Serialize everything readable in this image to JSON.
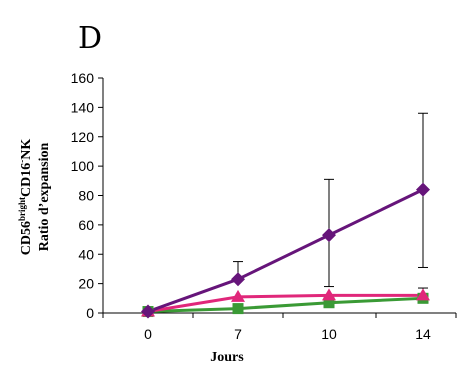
{
  "chart_data": {
    "type": "line",
    "panel_label": "D",
    "xlabel": "Jours",
    "ylabel": {
      "line1_parts": [
        {
          "text": "CD56",
          "sup": false
        },
        {
          "text": "bright",
          "sup": true
        },
        {
          "text": "CD16",
          "sup": false
        },
        {
          "text": "-",
          "sup": true
        },
        {
          "text": "NK",
          "sup": false
        }
      ],
      "line2": "Ratio d’expansion"
    },
    "x": [
      0,
      7,
      10,
      14
    ],
    "x_tick_labels": [
      "0",
      "7",
      "10",
      "14"
    ],
    "ylim": [
      0,
      160
    ],
    "y_ticks": [
      0,
      20,
      40,
      60,
      80,
      100,
      120,
      140,
      160
    ],
    "y_tick_labels": [
      "0",
      "20",
      "40",
      "60",
      "80",
      "100",
      "120",
      "140",
      "160"
    ],
    "series": [
      {
        "marker": "square",
        "color": "#3a9a35",
        "values": [
          1,
          3,
          7,
          10
        ],
        "err_upper": [
          0,
          0,
          0,
          0
        ],
        "err_lower": [
          0,
          0,
          0,
          0
        ]
      },
      {
        "marker": "triangle",
        "color": "#e0277a",
        "values": [
          1,
          11,
          12,
          12
        ],
        "err_upper": [
          0,
          0,
          0,
          5
        ],
        "err_lower": [
          0,
          0,
          0,
          0
        ]
      },
      {
        "marker": "diamond",
        "color": "#66157a",
        "values": [
          1,
          23,
          53,
          84
        ],
        "err_upper": [
          0,
          12,
          38,
          52
        ],
        "err_lower": [
          0,
          0,
          35,
          53
        ]
      }
    ]
  }
}
